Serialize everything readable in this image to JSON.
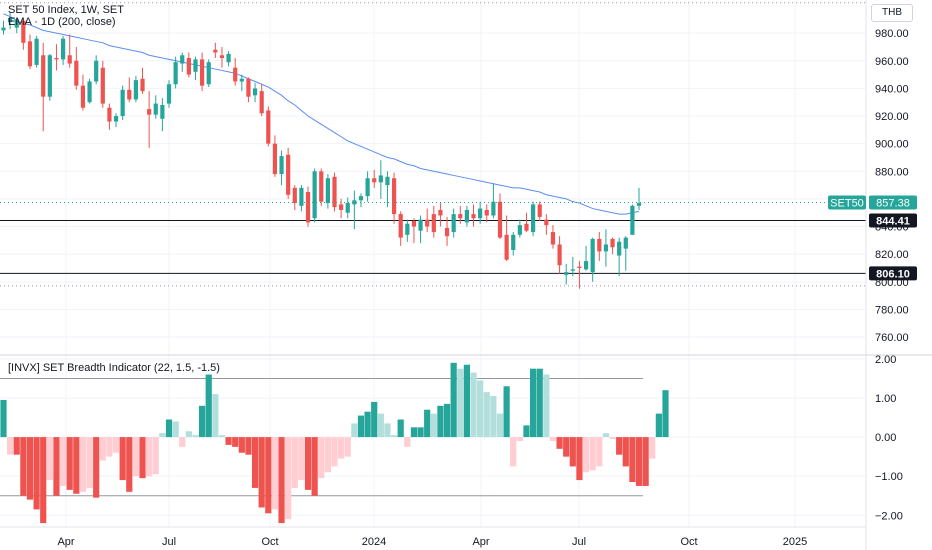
{
  "price_panel": {
    "title": "SET 50 Index, 1W, SET",
    "ema_label": "EMA · 1D (200, close)",
    "currency": "THB",
    "symbol_tag": "SET50",
    "last_price_label": "857.38",
    "level_labels": [
      "844.41",
      "806.10"
    ]
  },
  "indicator_panel": {
    "title": "[INVX] SET Breadth Indicator (22, 1.5, -1.5)"
  },
  "colors": {
    "up": "#26a69a",
    "down": "#ef5350",
    "up_light": "#b2dfdb",
    "down_light": "#ffcdd2",
    "ema": "#5b8def",
    "last_price_tag": "#26a69a",
    "level_tag": "#131722",
    "grid": "#f0f3fa",
    "band_line": "#9598a1"
  },
  "chart_data": [
    {
      "type": "candlestick",
      "title": "SET 50 Index, 1W, SET",
      "x_tick_labels": [
        "Apr",
        "Jul",
        "Oct",
        "2024",
        "Apr",
        "Jul",
        "Oct",
        "2025"
      ],
      "y_tick_labels": [
        "980.00",
        "960.00",
        "940.00",
        "920.00",
        "900.00",
        "880.00",
        "860.00",
        "840.00",
        "820.00",
        "800.00",
        "780.00",
        "760.00"
      ],
      "ylim": [
        747,
        1004
      ],
      "series_name": "SET50",
      "last_price": 857.38,
      "horizontal_levels": [
        844.41,
        806.1
      ],
      "ohlc": [
        [
          982,
          989,
          979,
          984
        ],
        [
          988,
          995,
          983,
          991
        ],
        [
          984,
          990,
          980,
          990
        ],
        [
          989,
          991,
          968,
          973
        ],
        [
          974,
          979,
          954,
          956
        ],
        [
          957,
          978,
          955,
          976
        ],
        [
          964,
          973,
          909,
          934
        ],
        [
          934,
          965,
          931,
          964
        ],
        [
          962,
          972,
          953,
          961
        ],
        [
          961,
          978,
          957,
          976
        ],
        [
          964,
          979,
          955,
          958
        ],
        [
          960,
          970,
          939,
          942
        ],
        [
          942,
          950,
          924,
          926
        ],
        [
          930,
          947,
          929,
          945
        ],
        [
          945,
          964,
          943,
          960
        ],
        [
          955,
          960,
          926,
          929
        ],
        [
          926,
          929,
          910,
          916
        ],
        [
          916,
          922,
          912,
          920
        ],
        [
          920,
          942,
          917,
          939
        ],
        [
          939,
          948,
          930,
          932
        ],
        [
          932,
          949,
          930,
          946
        ],
        [
          947,
          955,
          936,
          938
        ],
        [
          925,
          938,
          897,
          921
        ],
        [
          921,
          935,
          918,
          929
        ],
        [
          918,
          933,
          909,
          928
        ],
        [
          929,
          946,
          926,
          943
        ],
        [
          943,
          963,
          940,
          959
        ],
        [
          958,
          966,
          952,
          964
        ],
        [
          962,
          966,
          948,
          950
        ],
        [
          952,
          963,
          946,
          961
        ],
        [
          961,
          966,
          938,
          942
        ],
        [
          943,
          961,
          941,
          959
        ],
        [
          968,
          973,
          962,
          966
        ],
        [
          964,
          970,
          955,
          962
        ],
        [
          959,
          967,
          956,
          965
        ],
        [
          955,
          962,
          942,
          945
        ],
        [
          945,
          950,
          938,
          947
        ],
        [
          947,
          948,
          930,
          934
        ],
        [
          935,
          944,
          930,
          940
        ],
        [
          938,
          943,
          920,
          922
        ],
        [
          924,
          927,
          898,
          900
        ],
        [
          900,
          906,
          876,
          878
        ],
        [
          878,
          895,
          870,
          891
        ],
        [
          892,
          897,
          860,
          863
        ],
        [
          868,
          870,
          852,
          857
        ],
        [
          855,
          870,
          851,
          868
        ],
        [
          865,
          869,
          840,
          843
        ],
        [
          846,
          882,
          843,
          880
        ],
        [
          880,
          882,
          855,
          858
        ],
        [
          857,
          878,
          853,
          875
        ],
        [
          876,
          879,
          851,
          854
        ],
        [
          856,
          860,
          846,
          852
        ],
        [
          850,
          861,
          846,
          857
        ],
        [
          856,
          866,
          838,
          859
        ],
        [
          859,
          864,
          854,
          862
        ],
        [
          862,
          880,
          858,
          875
        ],
        [
          875,
          881,
          868,
          872
        ],
        [
          872,
          888,
          860,
          877
        ],
        [
          870,
          880,
          854,
          876
        ],
        [
          875,
          879,
          842,
          849
        ],
        [
          849,
          851,
          826,
          832
        ],
        [
          834,
          845,
          829,
          842
        ],
        [
          844,
          846,
          828,
          840
        ],
        [
          837,
          848,
          828,
          845
        ],
        [
          845,
          853,
          836,
          840
        ],
        [
          849,
          855,
          832,
          836
        ],
        [
          852,
          857,
          840,
          848
        ],
        [
          839,
          847,
          826,
          833
        ],
        [
          836,
          853,
          832,
          849
        ],
        [
          849,
          855,
          842,
          846
        ],
        [
          843,
          855,
          840,
          852
        ],
        [
          849,
          856,
          840,
          846
        ],
        [
          846,
          858,
          842,
          853
        ],
        [
          852,
          856,
          843,
          848
        ],
        [
          848,
          871,
          846,
          858
        ],
        [
          858,
          864,
          831,
          832
        ],
        [
          834,
          848,
          815,
          816
        ],
        [
          823,
          836,
          819,
          834
        ],
        [
          834,
          845,
          832,
          841
        ],
        [
          842,
          850,
          836,
          837
        ],
        [
          836,
          858,
          833,
          856
        ],
        [
          856,
          858,
          844,
          847
        ],
        [
          845,
          849,
          834,
          841
        ],
        [
          836,
          841,
          824,
          827
        ],
        [
          827,
          833,
          806,
          812
        ],
        [
          805,
          813,
          798,
          807
        ],
        [
          808,
          818,
          804,
          809
        ],
        [
          811,
          815,
          795,
          810
        ],
        [
          809,
          826,
          808,
          815
        ],
        [
          807,
          832,
          800,
          831
        ],
        [
          831,
          836,
          815,
          822
        ],
        [
          822,
          838,
          811,
          827
        ],
        [
          831,
          832,
          820,
          825
        ],
        [
          819,
          832,
          804,
          829
        ],
        [
          824,
          833,
          808,
          832
        ],
        [
          834,
          856,
          834,
          855
        ],
        [
          855,
          868,
          852,
          857
        ]
      ],
      "ema_200": [
        994,
        992,
        989,
        987,
        986,
        984,
        982,
        981,
        980,
        979,
        978,
        977,
        976,
        975,
        974,
        973,
        971,
        970,
        969,
        968,
        967,
        966,
        964,
        963,
        962,
        961,
        960,
        959,
        958,
        957,
        956,
        955,
        954,
        953,
        952,
        951,
        949,
        947,
        945,
        943,
        941,
        938,
        935,
        931,
        928,
        924,
        920,
        917,
        914,
        911,
        908,
        905,
        902,
        900,
        898,
        896,
        894,
        892,
        890,
        889,
        887,
        885,
        884,
        882,
        881,
        880,
        879,
        878,
        877,
        876,
        875,
        874,
        873,
        872,
        871,
        870,
        869,
        868,
        868,
        867,
        866,
        865,
        863,
        862,
        861,
        860,
        858,
        857,
        855,
        853,
        852,
        851,
        850,
        849,
        849,
        850,
        851
      ]
    },
    {
      "type": "bar",
      "title": "[INVX] SET Breadth Indicator (22, 1.5, -1.5)",
      "y_tick_labels": [
        "2.00",
        "1.00",
        "0.00",
        "−1.00",
        "−2.00"
      ],
      "ylim": [
        -2.3,
        2.1
      ],
      "bands": [
        1.5,
        -1.5
      ],
      "values": [
        0.95,
        -0.45,
        -0.45,
        -1.5,
        -1.6,
        -1.85,
        -2.2,
        -1.1,
        -1.5,
        -1.25,
        -1.35,
        -1.45,
        -1.4,
        -1.3,
        -1.55,
        -0.6,
        -0.5,
        -0.4,
        -1.1,
        -1.4,
        -1.0,
        -1.05,
        -1.0,
        -0.95,
        0.1,
        0.45,
        0.4,
        -0.25,
        0.15,
        0.05,
        0.8,
        1.6,
        1.1,
        0.05,
        -0.2,
        -0.25,
        -0.4,
        -0.45,
        -1.3,
        -1.8,
        -1.95,
        -1.85,
        -2.2,
        -2.1,
        -1.3,
        -1.1,
        -1.35,
        -1.5,
        -1.05,
        -0.9,
        -0.75,
        -0.55,
        -0.5,
        0.35,
        0.55,
        0.65,
        0.9,
        0.6,
        0.35,
        0.05,
        0.45,
        -0.25,
        0.25,
        0.25,
        0.7,
        0.6,
        0.8,
        0.85,
        1.9,
        1.75,
        1.85,
        1.65,
        1.45,
        1.15,
        1.05,
        0.6,
        1.3,
        -0.75,
        -0.1,
        0.3,
        1.75,
        1.75,
        1.6,
        -0.1,
        -0.3,
        -0.5,
        -0.75,
        -1.1,
        -0.9,
        -0.85,
        -0.75,
        0.1,
        -0.05,
        -0.45,
        -0.75,
        -1.15,
        -1.25,
        -1.25,
        -0.55,
        0.6,
        1.2
      ]
    }
  ]
}
